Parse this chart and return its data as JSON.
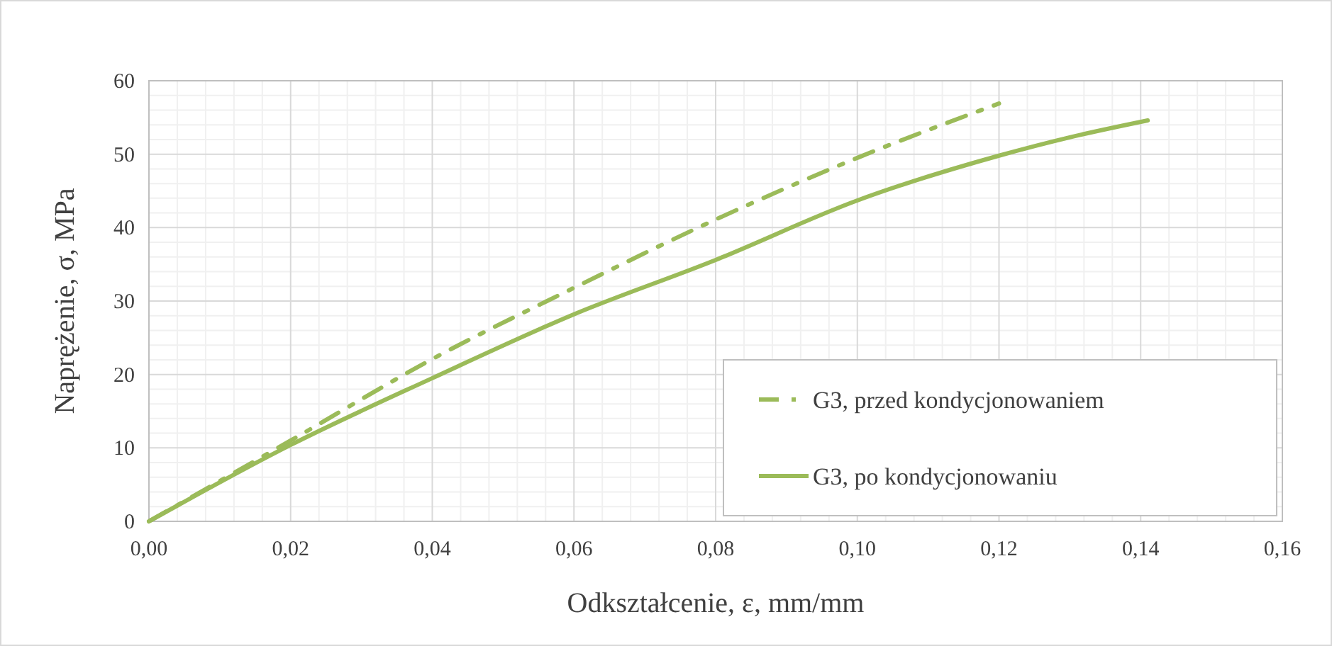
{
  "chart_data": {
    "type": "line",
    "xlabel": "Odkształcenie, ε, mm/mm",
    "ylabel": "Naprężenie, σ, MPa",
    "series": [
      {
        "name": "G3, przed kondycjonowaniem",
        "color": "#9bbb59",
        "line_style": "dashed",
        "x": [
          0,
          0.02,
          0.04,
          0.06,
          0.08,
          0.1,
          0.12
        ],
        "values": [
          0,
          11,
          22.1,
          31.8,
          41.1,
          49.5,
          56.9
        ]
      },
      {
        "name": "G3, po kondycjonowaniu",
        "color": "#9bbb59",
        "line_style": "solid",
        "x": [
          0,
          0.02,
          0.04,
          0.06,
          0.08,
          0.1,
          0.12,
          0.13,
          0.141
        ],
        "values": [
          0,
          10.4,
          19.5,
          28.2,
          35.6,
          43.7,
          49.8,
          52.3,
          54.6
        ]
      }
    ],
    "xlim": [
      0,
      0.16
    ],
    "xticks": [
      {
        "value": 0,
        "label": "0,00"
      },
      {
        "value": 0.02,
        "label": "0,02"
      },
      {
        "value": 0.04,
        "label": "0,04"
      },
      {
        "value": 0.06,
        "label": "0,06"
      },
      {
        "value": 0.08,
        "label": "0,08"
      },
      {
        "value": 0.1,
        "label": "0,10"
      },
      {
        "value": 0.12,
        "label": "0,12"
      },
      {
        "value": 0.14,
        "label": "0,14"
      },
      {
        "value": 0.16,
        "label": "0,16"
      }
    ],
    "ylim": [
      0,
      60
    ],
    "yticks": [
      0,
      10,
      20,
      30,
      40,
      50,
      60
    ],
    "grid": true,
    "legend": "bottom right",
    "marker": "none"
  }
}
